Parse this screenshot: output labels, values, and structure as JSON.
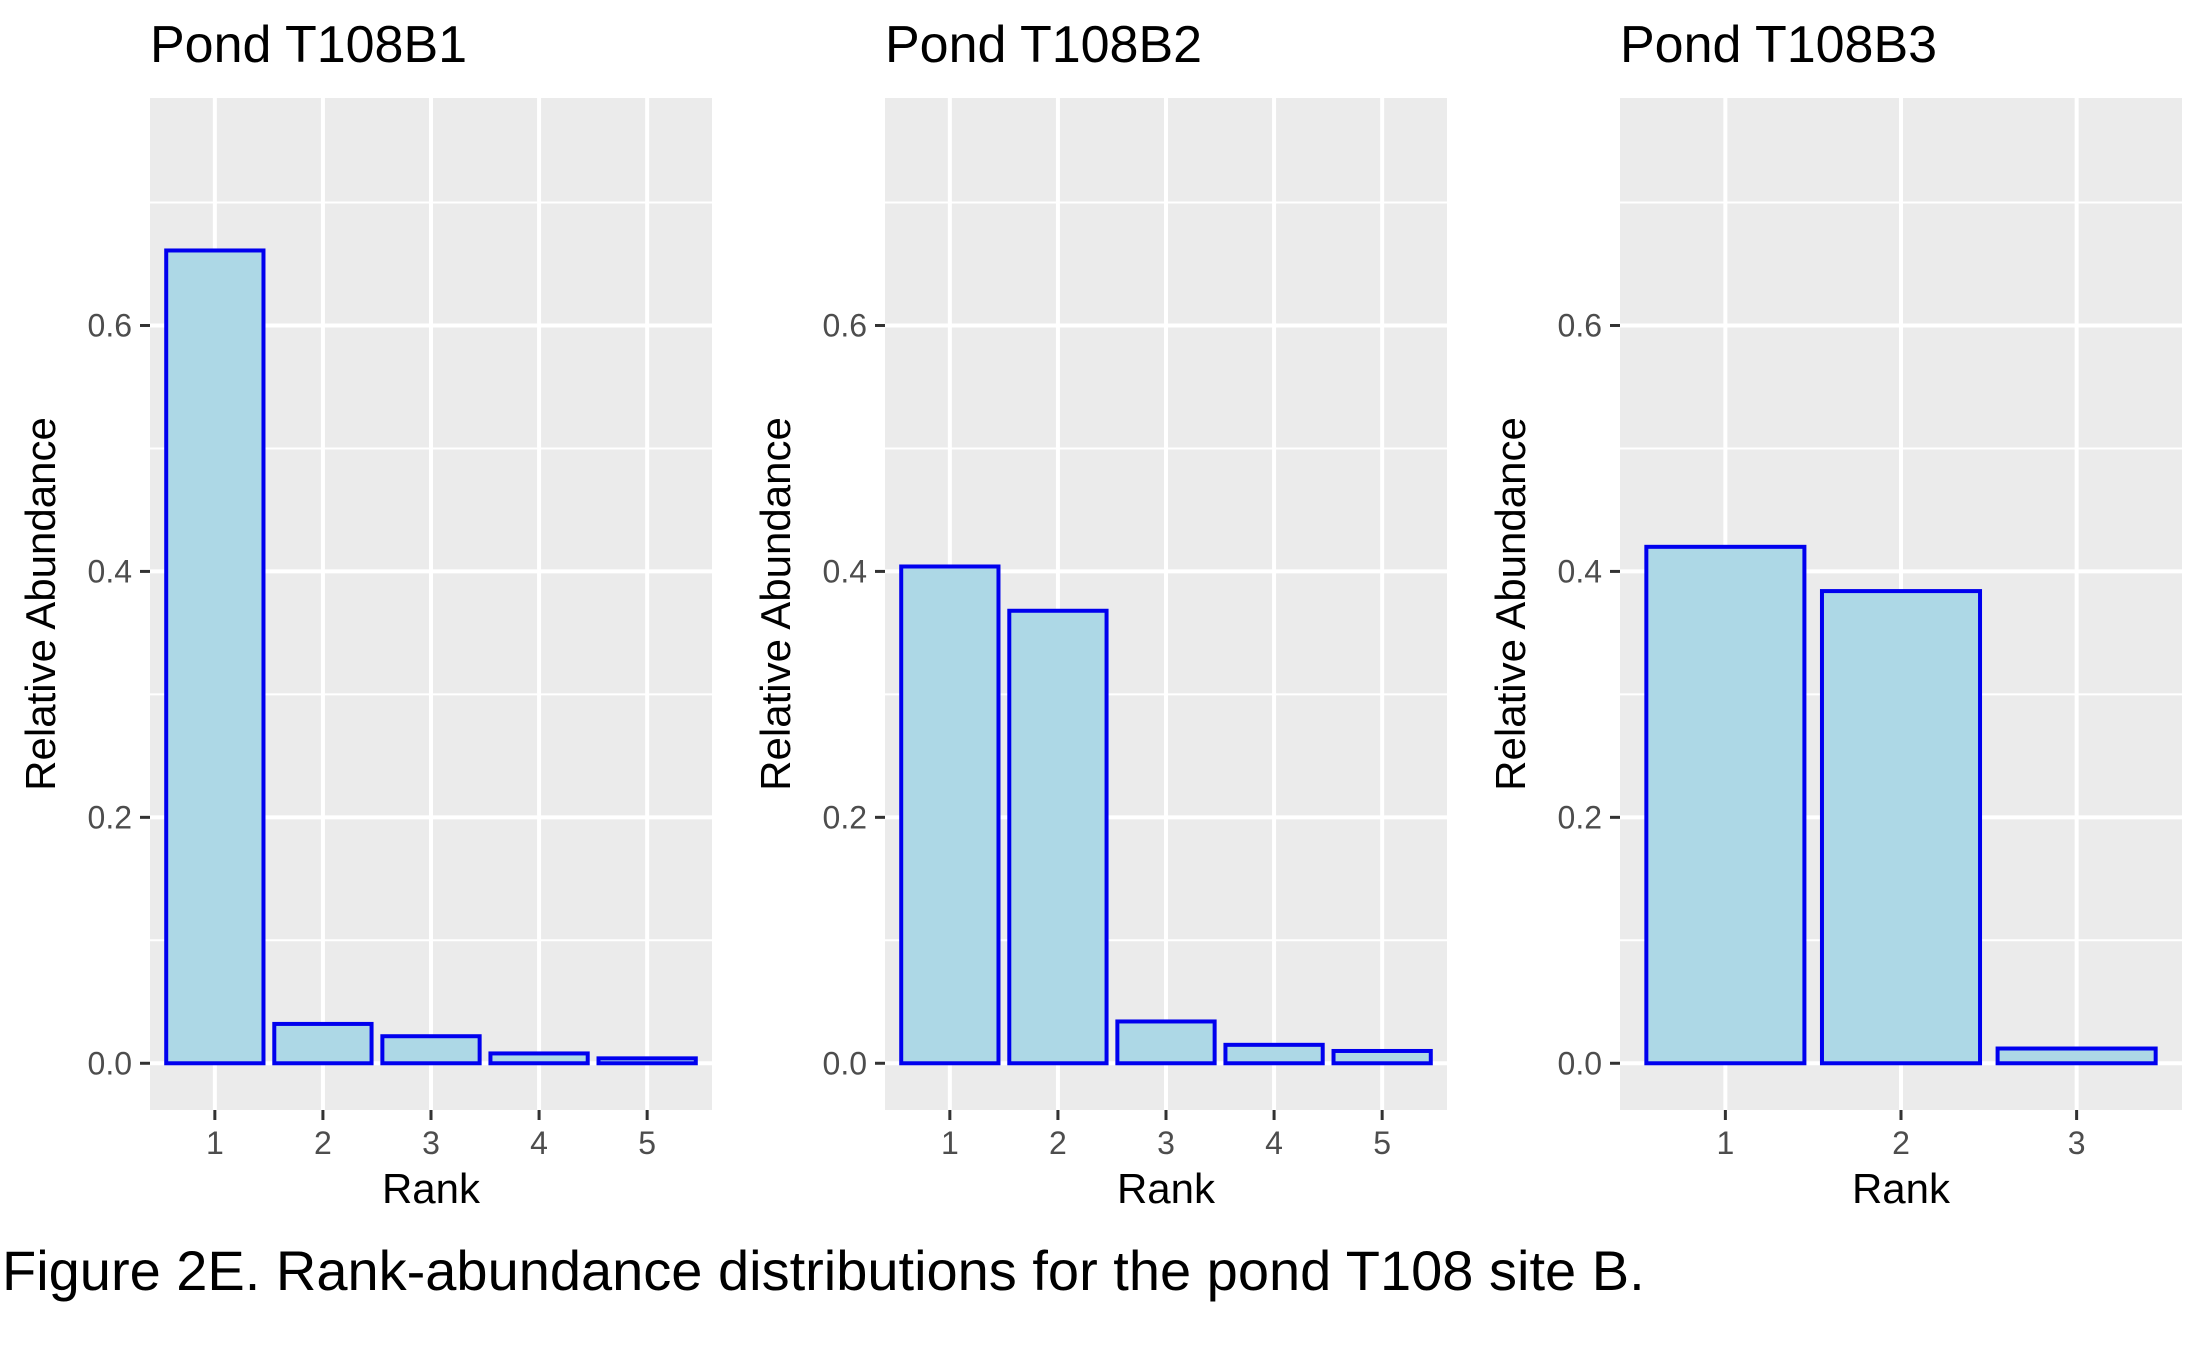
{
  "caption": "Figure 2E. Rank-abundance distributions for the pond T108 site B.",
  "colors": {
    "panel_background": "#ebebeb",
    "grid": "#ffffff",
    "bar_fill": "#add8e6",
    "bar_outline": "#0000ee",
    "tick_text": "#4d4d4d",
    "text": "#000000"
  },
  "chart_data": [
    {
      "type": "bar",
      "title": "Pond T108B1",
      "xlabel": "Rank",
      "ylabel": "Relative Abundance",
      "categories": [
        "1",
        "2",
        "3",
        "4",
        "5"
      ],
      "values": [
        0.661,
        0.032,
        0.022,
        0.008,
        0.004
      ],
      "ylim": [
        -0.038,
        0.785
      ],
      "yticks": [
        0.0,
        0.2,
        0.4,
        0.6
      ],
      "ytick_labels": [
        "0.0",
        "0.2",
        "0.4",
        "0.6"
      ],
      "grid": true,
      "legend": "none"
    },
    {
      "type": "bar",
      "title": "Pond T108B2",
      "xlabel": "Rank",
      "ylabel": "Relative Abundance",
      "categories": [
        "1",
        "2",
        "3",
        "4",
        "5"
      ],
      "values": [
        0.404,
        0.368,
        0.034,
        0.015,
        0.01
      ],
      "ylim": [
        -0.038,
        0.785
      ],
      "yticks": [
        0.0,
        0.2,
        0.4,
        0.6
      ],
      "ytick_labels": [
        "0.0",
        "0.2",
        "0.4",
        "0.6"
      ],
      "grid": true,
      "legend": "none"
    },
    {
      "type": "bar",
      "title": "Pond T108B3",
      "xlabel": "Rank",
      "ylabel": "Relative Abundance",
      "categories": [
        "1",
        "2",
        "3"
      ],
      "values": [
        0.42,
        0.384,
        0.012
      ],
      "ylim": [
        -0.038,
        0.785
      ],
      "yticks": [
        0.0,
        0.2,
        0.4,
        0.6
      ],
      "ytick_labels": [
        "0.0",
        "0.2",
        "0.4",
        "0.6"
      ],
      "grid": true,
      "legend": "none"
    }
  ]
}
